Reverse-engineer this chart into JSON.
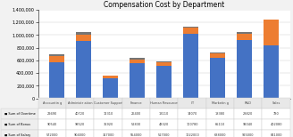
{
  "title": "Compensation Cost by Department",
  "categories": [
    "Accountin\ng",
    "Administr\nation",
    "Customer\nSupport",
    "Finance",
    "Human\nResources",
    "IT",
    "Marketin\ng",
    "R&D",
    "Sales"
  ],
  "cat_short": [
    "Accountin\ng",
    "Administr\nation",
    "Customer\nSupport",
    "Finance",
    "Human\nResources",
    "IT",
    "Marketin\ng",
    "R&D",
    "Sales"
  ],
  "overtime": [
    29490,
    40720,
    12310,
    26400,
    13110,
    14070,
    18380,
    28820,
    780
  ],
  "bonus": [
    90540,
    98520,
    35920,
    52830,
    48320,
    100780,
    65110,
    99040,
    402080
  ],
  "salary": [
    572000,
    904000,
    317000,
    554000,
    517000,
    1022000,
    638000,
    925000,
    841000
  ],
  "color_salary": "#4472C4",
  "color_bonus": "#ED7D31",
  "color_overtime": "#757575",
  "ylim": [
    0,
    1400000
  ],
  "yticks": [
    0,
    200000,
    400000,
    600000,
    800000,
    1000000,
    1200000,
    1400000
  ],
  "ytick_labels": [
    "0",
    "200,000",
    "400,000",
    "600,000",
    "800,000",
    "1,000,000",
    "1,200,000",
    "1,400,000"
  ],
  "legend_labels": [
    "Sum of Overtime",
    "Sum of Bonus",
    "Sum of Salary"
  ],
  "table_rows": [
    [
      "Sum of Overtime",
      "29490",
      "40720",
      "12310",
      "26400",
      "13110",
      "14070",
      "18380",
      "28820",
      "780"
    ],
    [
      "Sum of Bonus",
      "90540",
      "98520",
      "35920",
      "52830",
      "48320",
      "100780",
      "65110",
      "99040",
      "402080"
    ],
    [
      "Sum of Salary",
      "572000",
      "904000",
      "317000",
      "554000",
      "517000",
      "1022000",
      "638000",
      "925000",
      "841000"
    ]
  ],
  "bg_color": "#F2F2F2",
  "chart_bg": "#FFFFFF"
}
